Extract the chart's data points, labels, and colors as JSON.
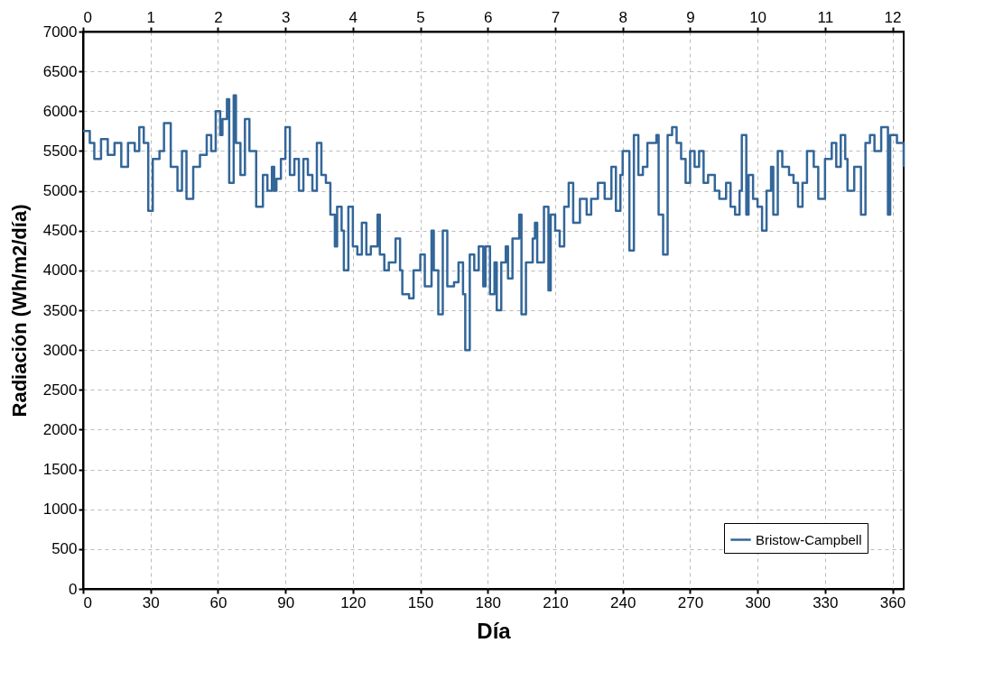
{
  "chart_data": {
    "type": "step",
    "xlabel": "Día",
    "ylabel": "Radiación (Wh/m2/día)",
    "xlim": [
      0,
      365
    ],
    "xticks": [
      0,
      30,
      60,
      90,
      120,
      150,
      180,
      210,
      240,
      270,
      300,
      330,
      360
    ],
    "ylim": [
      0,
      7000
    ],
    "yticks": [
      0,
      500,
      1000,
      1500,
      2000,
      2500,
      3000,
      3500,
      4000,
      4500,
      5000,
      5500,
      6000,
      6500,
      7000
    ],
    "x2lim": [
      0,
      12.1667
    ],
    "x2ticks": [
      0,
      1,
      2,
      3,
      4,
      5,
      6,
      7,
      8,
      9,
      10,
      11,
      12
    ],
    "grid": true,
    "legend": "bottom right",
    "line_style": "solid",
    "marker": "none",
    "series": [
      {
        "name": "Bristow-Campbell",
        "color": "#336699",
        "x": [
          0,
          3,
          5,
          8,
          11,
          14,
          17,
          20,
          23,
          25,
          27,
          29,
          31,
          34,
          36,
          39,
          42,
          44,
          46,
          49,
          52,
          55,
          57,
          59,
          61,
          62,
          64,
          65,
          67,
          68,
          70,
          72,
          74,
          76,
          77,
          80,
          82,
          84,
          85,
          86,
          88,
          90,
          92,
          94,
          96,
          98,
          100,
          102,
          104,
          106,
          108,
          110,
          112,
          113,
          115,
          116,
          118,
          120,
          122,
          124,
          126,
          128,
          131,
          132,
          134,
          136,
          139,
          141,
          142,
          145,
          147,
          150,
          152,
          155,
          156,
          158,
          160,
          162,
          165,
          167,
          169,
          170,
          172,
          174,
          176,
          178,
          179,
          181,
          183,
          184,
          186,
          188,
          189,
          191,
          194,
          195,
          197,
          200,
          201,
          202,
          205,
          207,
          208,
          210,
          212,
          214,
          216,
          218,
          221,
          224,
          226,
          229,
          232,
          235,
          237,
          239,
          240,
          243,
          245,
          247,
          249,
          251,
          255,
          256,
          258,
          260,
          262,
          264,
          266,
          268,
          270,
          272,
          274,
          276,
          278,
          281,
          283,
          286,
          288,
          290,
          292,
          293,
          295,
          296,
          298,
          300,
          302,
          304,
          306,
          307,
          309,
          311,
          314,
          316,
          318,
          320,
          322,
          325,
          327,
          330,
          333,
          335,
          337,
          339,
          340,
          343,
          346,
          348,
          350,
          352,
          355,
          358,
          359,
          362,
          363,
          365
        ],
        "values": [
          5750,
          5600,
          5400,
          5650,
          5450,
          5600,
          5300,
          5600,
          5500,
          5800,
          5600,
          4750,
          5400,
          5500,
          5850,
          5300,
          5000,
          5500,
          4900,
          5300,
          5450,
          5700,
          5500,
          6000,
          5700,
          5900,
          6150,
          5100,
          6200,
          5600,
          5200,
          5900,
          5500,
          5500,
          4800,
          5200,
          5000,
          5300,
          5000,
          5150,
          5400,
          5800,
          5200,
          5400,
          5000,
          5400,
          5200,
          5000,
          5600,
          5200,
          5100,
          4700,
          4300,
          4800,
          4500,
          4000,
          4800,
          4300,
          4200,
          4600,
          4200,
          4300,
          4700,
          4200,
          4000,
          4100,
          4400,
          4000,
          3700,
          3650,
          4000,
          4200,
          3800,
          4500,
          4000,
          3450,
          4500,
          3800,
          3850,
          4100,
          3700,
          3000,
          4200,
          4000,
          4300,
          3800,
          4300,
          3700,
          4100,
          3500,
          4100,
          4300,
          3900,
          4400,
          4700,
          3450,
          4100,
          4400,
          4600,
          4100,
          4800,
          3750,
          4700,
          4500,
          4300,
          4800,
          5100,
          4600,
          4900,
          4700,
          4900,
          5100,
          4900,
          5300,
          4750,
          5200,
          5500,
          4250,
          5700,
          5200,
          5300,
          5600,
          5700,
          4700,
          4200,
          5700,
          5800,
          5600,
          5400,
          5100,
          5500,
          5300,
          5500,
          5100,
          5200,
          5000,
          4900,
          5100,
          4800,
          4700,
          5000,
          5700,
          4700,
          5200,
          4900,
          4800,
          4500,
          5000,
          5300,
          4700,
          5500,
          5300,
          5200,
          5100,
          4800,
          5100,
          5500,
          5300,
          4900,
          5400,
          5600,
          5300,
          5700,
          5400,
          5000,
          5300,
          4700,
          5600,
          5700,
          5500,
          5800,
          4700,
          5700,
          5600,
          5600,
          5300
        ]
      }
    ]
  }
}
